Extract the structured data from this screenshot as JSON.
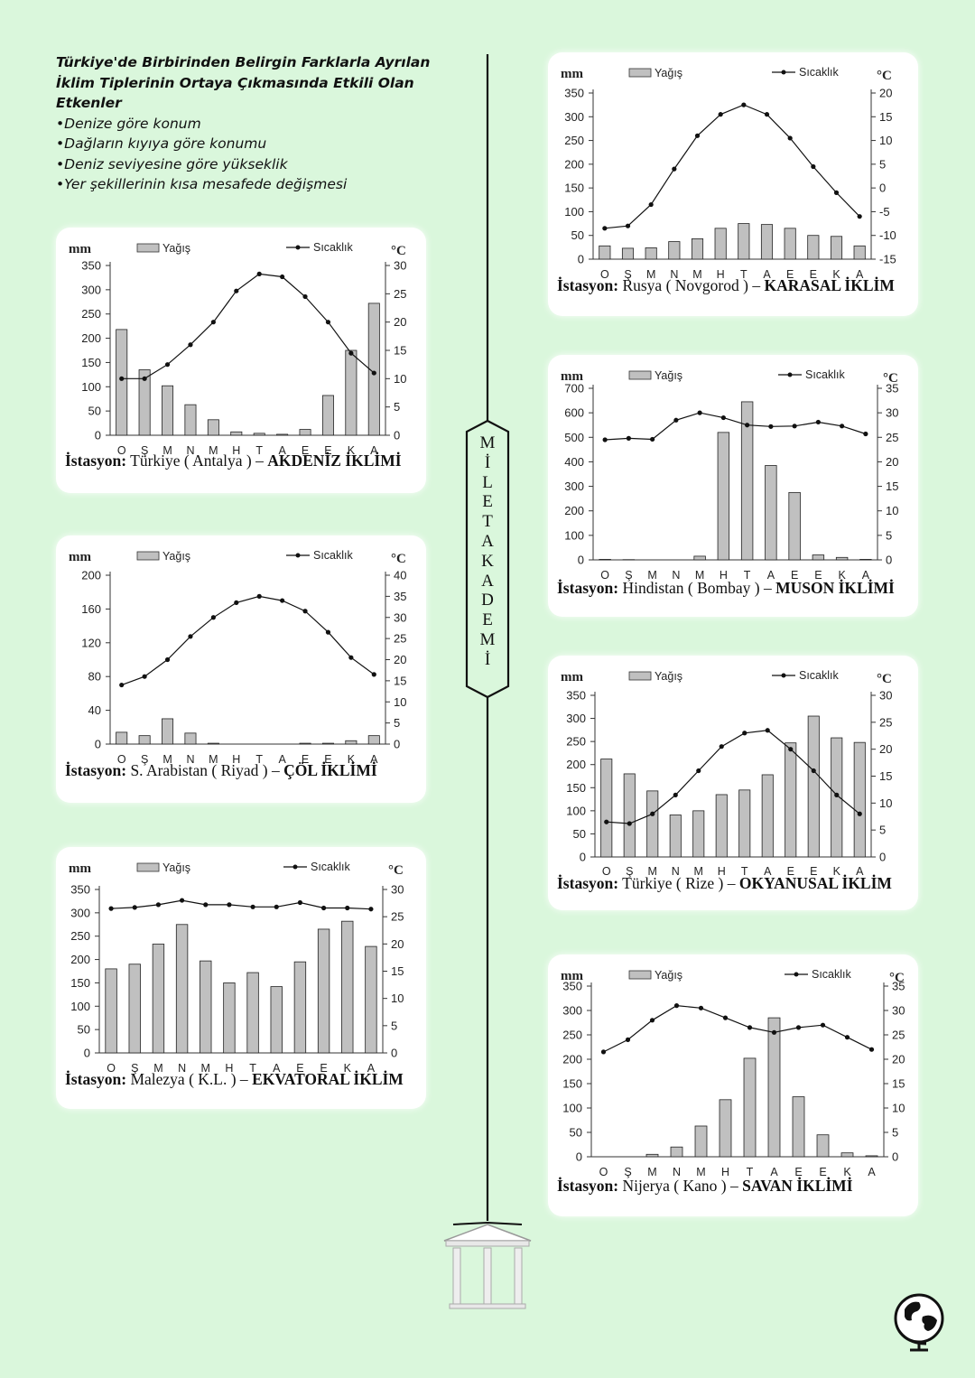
{
  "intro": {
    "heading": "Türkiye'de Birbirinden Belirgin Farklarla Ayrılan İklim Tiplerinin Ortaya Çıkmasında Etkili Olan Etkenler",
    "items": [
      "•Denize göre konum",
      "•Dağların kıyıya göre konumu",
      "•Deniz seviyesine göre yükseklik",
      "•Yer şekillerinin kısa mesafede değişmesi"
    ]
  },
  "brand": {
    "letters": [
      "M",
      "İ",
      "L",
      "E",
      "T",
      "A",
      "K",
      "A",
      "D",
      "E",
      "M",
      "İ"
    ]
  },
  "colors": {
    "background": "#daf7dc",
    "bar": "#c0c0c0",
    "line": "#111111"
  },
  "chart_data": [
    {
      "id": "antalya",
      "type": "bar+line",
      "legend": {
        "bar": "Yağış",
        "line": "Sıcaklık"
      },
      "left_unit": "mm",
      "right_unit": "°C",
      "categories": [
        "O",
        "Ş",
        "M",
        "N",
        "M",
        "H",
        "T",
        "A",
        "E",
        "E",
        "K",
        "A"
      ],
      "rain_ylim": [
        0,
        350
      ],
      "rain_ticks": [
        0,
        50,
        100,
        150,
        200,
        250,
        300,
        350
      ],
      "temp_ylim": [
        0,
        30
      ],
      "temp_ticks": [
        0,
        5,
        10,
        15,
        20,
        25,
        30
      ],
      "series": [
        {
          "name": "Yağış",
          "values": [
            218,
            135,
            102,
            63,
            32,
            7,
            4,
            2,
            12,
            82,
            175,
            272
          ]
        },
        {
          "name": "Sıcaklık",
          "values": [
            10,
            10,
            12.5,
            16,
            20,
            25.5,
            28.5,
            28,
            24.5,
            20,
            14.5,
            11
          ]
        }
      ],
      "caption": {
        "label": "İstasyon:",
        "place": "Türkiye ( Antalya ) –",
        "climate": "AKDENİZ İKLİMİ"
      }
    },
    {
      "id": "riyad",
      "type": "bar+line",
      "legend": {
        "bar": "Yağış",
        "line": "Sıcaklık"
      },
      "left_unit": "mm",
      "right_unit": "°C",
      "categories": [
        "O",
        "Ş",
        "M",
        "N",
        "M",
        "H",
        "T",
        "A",
        "E",
        "E",
        "K",
        "A"
      ],
      "rain_ylim": [
        0,
        200
      ],
      "rain_ticks": [
        0,
        40,
        80,
        120,
        160,
        200
      ],
      "temp_ylim": [
        0,
        40
      ],
      "temp_ticks": [
        0,
        5,
        10,
        15,
        20,
        25,
        30,
        35,
        40
      ],
      "series": [
        {
          "name": "Yağış",
          "values": [
            14,
            10,
            30,
            13,
            1,
            0,
            0,
            0,
            1,
            1,
            4,
            10
          ]
        },
        {
          "name": "Sıcaklık",
          "values": [
            14,
            16,
            20,
            25.5,
            30,
            33.5,
            35,
            34,
            31.5,
            26.5,
            20.5,
            16.5
          ]
        }
      ],
      "caption": {
        "label": "İstasyon:",
        "place": "S. Arabistan ( Riyad ) –",
        "climate": "ÇÖL İKLİMİ"
      }
    },
    {
      "id": "malezya",
      "type": "bar+line",
      "legend": {
        "bar": "Yağış",
        "line": "Sıcaklık"
      },
      "left_unit": "mm",
      "right_unit": "°C",
      "categories": [
        "O",
        "Ş",
        "M",
        "N",
        "M",
        "H",
        "T",
        "A",
        "E",
        "E",
        "K",
        "A"
      ],
      "rain_ylim": [
        0,
        350
      ],
      "rain_ticks": [
        0,
        50,
        100,
        150,
        200,
        250,
        300,
        350
      ],
      "temp_ylim": [
        0,
        30
      ],
      "temp_ticks": [
        0,
        5,
        10,
        15,
        20,
        25,
        30
      ],
      "series": [
        {
          "name": "Yağış",
          "values": [
            180,
            190,
            233,
            275,
            197,
            150,
            172,
            142,
            195,
            265,
            282,
            228
          ]
        },
        {
          "name": "Sıcaklık",
          "values": [
            26.5,
            26.7,
            27.2,
            28,
            27.2,
            27.2,
            26.8,
            26.8,
            27.6,
            26.6,
            26.6,
            26.4
          ]
        }
      ],
      "caption": {
        "label": "İstasyon:",
        "place": "Malezya ( K.L. ) –",
        "climate": "EKVATORAL İKLİM"
      }
    },
    {
      "id": "novgorod",
      "type": "bar+line",
      "legend": {
        "bar": "Yağış",
        "line": "Sıcaklık"
      },
      "left_unit": "mm",
      "right_unit": "°C",
      "categories": [
        "O",
        "Ş",
        "M",
        "N",
        "M",
        "H",
        "T",
        "A",
        "E",
        "E",
        "K",
        "A"
      ],
      "rain_ylim": [
        0,
        350
      ],
      "rain_ticks": [
        0,
        50,
        100,
        150,
        200,
        250,
        300,
        350
      ],
      "temp_ylim": [
        -15,
        20
      ],
      "temp_ticks": [
        -15,
        -10,
        -5,
        0,
        5,
        10,
        15,
        20
      ],
      "series": [
        {
          "name": "Yağış",
          "values": [
            28,
            23,
            24,
            37,
            43,
            65,
            75,
            73,
            65,
            50,
            48,
            28
          ]
        },
        {
          "name": "Sıcaklık",
          "values": [
            -8.5,
            -8,
            -3.5,
            4,
            11,
            15.5,
            17.5,
            15.5,
            10.5,
            4.5,
            -1,
            -6
          ]
        }
      ],
      "caption": {
        "label": "İstasyon:",
        "place": "Rusya ( Novgorod ) –",
        "climate": "KARASAL İKLİM"
      }
    },
    {
      "id": "bombay",
      "type": "bar+line",
      "legend": {
        "bar": "Yağış",
        "line": "Sıcaklık"
      },
      "left_unit": "mm",
      "right_unit": "°C",
      "categories": [
        "O",
        "Ş",
        "M",
        "N",
        "M",
        "H",
        "T",
        "A",
        "E",
        "E",
        "K",
        "A"
      ],
      "rain_ylim": [
        0,
        700
      ],
      "rain_ticks": [
        0,
        100,
        200,
        300,
        400,
        500,
        600,
        700
      ],
      "temp_ylim": [
        0,
        35
      ],
      "temp_ticks": [
        0,
        5,
        10,
        15,
        20,
        25,
        30,
        35
      ],
      "series": [
        {
          "name": "Yağış",
          "values": [
            2,
            1,
            0,
            0,
            15,
            520,
            645,
            385,
            275,
            20,
            10,
            2
          ]
        },
        {
          "name": "Sıcaklık",
          "values": [
            24.5,
            24.8,
            24.6,
            28.5,
            30,
            29,
            27.5,
            27.2,
            27.3,
            28.1,
            27.3,
            25.7
          ]
        }
      ],
      "caption": {
        "label": "İstasyon:",
        "place": "Hindistan ( Bombay ) –",
        "climate": "MUSON İKLİMİ"
      }
    },
    {
      "id": "rize",
      "type": "bar+line",
      "legend": {
        "bar": "Yağış",
        "line": "Sıcaklık"
      },
      "left_unit": "mm",
      "right_unit": "°C",
      "categories": [
        "O",
        "Ş",
        "M",
        "N",
        "M",
        "H",
        "T",
        "A",
        "E",
        "E",
        "K",
        "A"
      ],
      "rain_ylim": [
        0,
        350
      ],
      "rain_ticks": [
        0,
        50,
        100,
        150,
        200,
        250,
        300,
        350
      ],
      "temp_ylim": [
        0,
        30
      ],
      "temp_ticks": [
        0,
        5,
        10,
        15,
        20,
        25,
        30
      ],
      "series": [
        {
          "name": "Yağış",
          "values": [
            212,
            180,
            143,
            91,
            100,
            135,
            145,
            178,
            247,
            305,
            258,
            248
          ]
        },
        {
          "name": "Sıcaklık",
          "values": [
            6.5,
            6.2,
            8,
            11.5,
            16,
            20.5,
            23,
            23.5,
            20,
            16,
            11.5,
            8
          ]
        }
      ],
      "caption": {
        "label": "İstasyon:",
        "place": "Türkiye ( Rize ) –",
        "climate": "OKYANUSAL İKLİM"
      }
    },
    {
      "id": "kano",
      "type": "bar+line",
      "legend": {
        "bar": "Yağış",
        "line": "Sıcaklık"
      },
      "left_unit": "mm",
      "right_unit": "°C",
      "categories": [
        "O",
        "Ş",
        "M",
        "N",
        "M",
        "H",
        "T",
        "A",
        "E",
        "E",
        "K",
        "A"
      ],
      "rain_ylim": [
        0,
        350
      ],
      "rain_ticks": [
        0,
        50,
        100,
        150,
        200,
        250,
        300,
        350
      ],
      "temp_ylim": [
        0,
        35
      ],
      "temp_ticks": [
        0,
        5,
        10,
        15,
        20,
        25,
        30,
        35
      ],
      "series": [
        {
          "name": "Yağış",
          "values": [
            0,
            0,
            5,
            20,
            63,
            117,
            202,
            285,
            123,
            45,
            8,
            2
          ]
        },
        {
          "name": "Sıcaklık",
          "values": [
            21.5,
            24,
            28,
            31,
            30.5,
            28.5,
            26.5,
            25.5,
            26.5,
            27,
            24.5,
            22
          ]
        }
      ],
      "caption": {
        "label": "İstasyon:",
        "place": "Nijerya ( Kano ) –",
        "climate": "SAVAN İKLİMİ"
      }
    }
  ]
}
